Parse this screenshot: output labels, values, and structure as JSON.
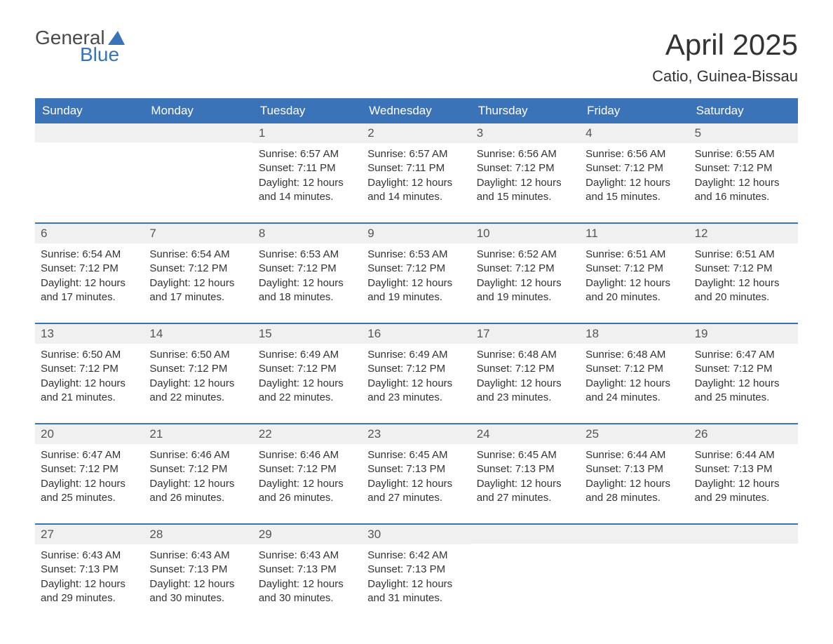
{
  "brand": {
    "word1": "General",
    "word2": "Blue"
  },
  "title": "April 2025",
  "location": "Catio, Guinea-Bissau",
  "daysOfWeek": [
    "Sunday",
    "Monday",
    "Tuesday",
    "Wednesday",
    "Thursday",
    "Friday",
    "Saturday"
  ],
  "labels": {
    "sunrise": "Sunrise:",
    "sunset": "Sunset:",
    "daylight": "Daylight:"
  },
  "colors": {
    "header_bg": "#3b73b9",
    "header_text": "#ffffff",
    "daynum_bg": "#f0f0f0",
    "page_bg": "#ffffff",
    "text": "#333333",
    "logo_accent": "#3b73b9"
  },
  "weeks": [
    [
      null,
      null,
      {
        "n": "1",
        "sunrise": "6:57 AM",
        "sunset": "7:11 PM",
        "daylight": "12 hours and 14 minutes."
      },
      {
        "n": "2",
        "sunrise": "6:57 AM",
        "sunset": "7:11 PM",
        "daylight": "12 hours and 14 minutes."
      },
      {
        "n": "3",
        "sunrise": "6:56 AM",
        "sunset": "7:12 PM",
        "daylight": "12 hours and 15 minutes."
      },
      {
        "n": "4",
        "sunrise": "6:56 AM",
        "sunset": "7:12 PM",
        "daylight": "12 hours and 15 minutes."
      },
      {
        "n": "5",
        "sunrise": "6:55 AM",
        "sunset": "7:12 PM",
        "daylight": "12 hours and 16 minutes."
      }
    ],
    [
      {
        "n": "6",
        "sunrise": "6:54 AM",
        "sunset": "7:12 PM",
        "daylight": "12 hours and 17 minutes."
      },
      {
        "n": "7",
        "sunrise": "6:54 AM",
        "sunset": "7:12 PM",
        "daylight": "12 hours and 17 minutes."
      },
      {
        "n": "8",
        "sunrise": "6:53 AM",
        "sunset": "7:12 PM",
        "daylight": "12 hours and 18 minutes."
      },
      {
        "n": "9",
        "sunrise": "6:53 AM",
        "sunset": "7:12 PM",
        "daylight": "12 hours and 19 minutes."
      },
      {
        "n": "10",
        "sunrise": "6:52 AM",
        "sunset": "7:12 PM",
        "daylight": "12 hours and 19 minutes."
      },
      {
        "n": "11",
        "sunrise": "6:51 AM",
        "sunset": "7:12 PM",
        "daylight": "12 hours and 20 minutes."
      },
      {
        "n": "12",
        "sunrise": "6:51 AM",
        "sunset": "7:12 PM",
        "daylight": "12 hours and 20 minutes."
      }
    ],
    [
      {
        "n": "13",
        "sunrise": "6:50 AM",
        "sunset": "7:12 PM",
        "daylight": "12 hours and 21 minutes."
      },
      {
        "n": "14",
        "sunrise": "6:50 AM",
        "sunset": "7:12 PM",
        "daylight": "12 hours and 22 minutes."
      },
      {
        "n": "15",
        "sunrise": "6:49 AM",
        "sunset": "7:12 PM",
        "daylight": "12 hours and 22 minutes."
      },
      {
        "n": "16",
        "sunrise": "6:49 AM",
        "sunset": "7:12 PM",
        "daylight": "12 hours and 23 minutes."
      },
      {
        "n": "17",
        "sunrise": "6:48 AM",
        "sunset": "7:12 PM",
        "daylight": "12 hours and 23 minutes."
      },
      {
        "n": "18",
        "sunrise": "6:48 AM",
        "sunset": "7:12 PM",
        "daylight": "12 hours and 24 minutes."
      },
      {
        "n": "19",
        "sunrise": "6:47 AM",
        "sunset": "7:12 PM",
        "daylight": "12 hours and 25 minutes."
      }
    ],
    [
      {
        "n": "20",
        "sunrise": "6:47 AM",
        "sunset": "7:12 PM",
        "daylight": "12 hours and 25 minutes."
      },
      {
        "n": "21",
        "sunrise": "6:46 AM",
        "sunset": "7:12 PM",
        "daylight": "12 hours and 26 minutes."
      },
      {
        "n": "22",
        "sunrise": "6:46 AM",
        "sunset": "7:12 PM",
        "daylight": "12 hours and 26 minutes."
      },
      {
        "n": "23",
        "sunrise": "6:45 AM",
        "sunset": "7:13 PM",
        "daylight": "12 hours and 27 minutes."
      },
      {
        "n": "24",
        "sunrise": "6:45 AM",
        "sunset": "7:13 PM",
        "daylight": "12 hours and 27 minutes."
      },
      {
        "n": "25",
        "sunrise": "6:44 AM",
        "sunset": "7:13 PM",
        "daylight": "12 hours and 28 minutes."
      },
      {
        "n": "26",
        "sunrise": "6:44 AM",
        "sunset": "7:13 PM",
        "daylight": "12 hours and 29 minutes."
      }
    ],
    [
      {
        "n": "27",
        "sunrise": "6:43 AM",
        "sunset": "7:13 PM",
        "daylight": "12 hours and 29 minutes."
      },
      {
        "n": "28",
        "sunrise": "6:43 AM",
        "sunset": "7:13 PM",
        "daylight": "12 hours and 30 minutes."
      },
      {
        "n": "29",
        "sunrise": "6:43 AM",
        "sunset": "7:13 PM",
        "daylight": "12 hours and 30 minutes."
      },
      {
        "n": "30",
        "sunrise": "6:42 AM",
        "sunset": "7:13 PM",
        "daylight": "12 hours and 31 minutes."
      },
      null,
      null,
      null
    ]
  ]
}
